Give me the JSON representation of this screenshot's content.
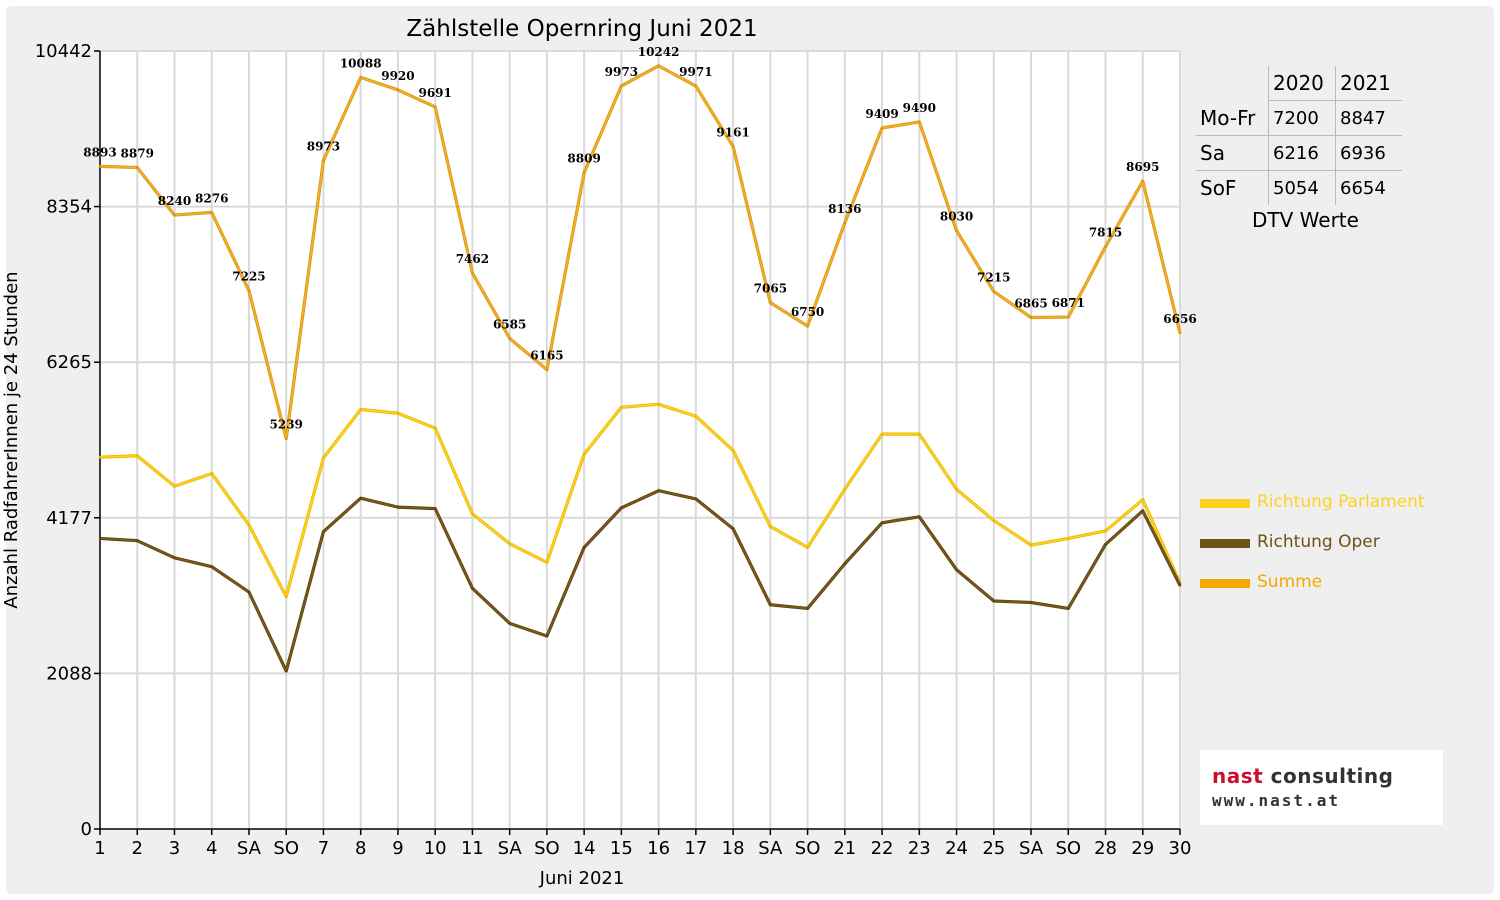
{
  "chart_data": {
    "type": "line",
    "title": "Zählstelle Opernring Juni 2021",
    "xlabel": "Juni 2021",
    "ylabel": "Anzahl RadfahrerInnen je 24 Stunden",
    "ylim": [
      0,
      10442
    ],
    "yticks": [
      "0",
      "2088",
      "4177",
      "6265",
      "8354",
      "10442"
    ],
    "grid": true,
    "legend_position": "right",
    "categories": [
      "1",
      "2",
      "3",
      "4",
      "SA",
      "SO",
      "7",
      "8",
      "9",
      "10",
      "11",
      "SA",
      "SO",
      "14",
      "15",
      "16",
      "17",
      "18",
      "SA",
      "SO",
      "21",
      "22",
      "23",
      "24",
      "25",
      "SA",
      "SO",
      "28",
      "29",
      "30"
    ],
    "category_colors": [
      "#000000",
      "#000000",
      "#e00000",
      "#000000",
      "#000000",
      "#e00000",
      "#000000",
      "#000000",
      "#000000",
      "#000000",
      "#000000",
      "#000000",
      "#e00000",
      "#000000",
      "#000000",
      "#000000",
      "#000000",
      "#000000",
      "#000000",
      "#e00000",
      "#000000",
      "#000000",
      "#000000",
      "#000000",
      "#000000",
      "#000000",
      "#e00000",
      "#000000",
      "#000000",
      "#000000"
    ],
    "series": [
      {
        "name": "Richtung Parlament",
        "color": "#ffd21f",
        "values": [
          4990,
          5010,
          4600,
          4770,
          4080,
          3120,
          4980,
          5630,
          5580,
          5380,
          4230,
          3830,
          3580,
          5030,
          5660,
          5700,
          5540,
          5080,
          4060,
          3780,
          4560,
          5300,
          5300,
          4560,
          4140,
          3810,
          3900,
          4000,
          4420,
          3300
        ]
      },
      {
        "name": "Richtung Oper",
        "color": "#7a5a1c",
        "values": [
          3900,
          3870,
          3640,
          3520,
          3180,
          2120,
          3990,
          4440,
          4320,
          4300,
          3230,
          2760,
          2590,
          3780,
          4310,
          4540,
          4430,
          4030,
          3010,
          2960,
          3560,
          4110,
          4190,
          3480,
          3060,
          3040,
          2960,
          3820,
          4270,
          3270
        ]
      },
      {
        "name": "Summe",
        "color": "#f3b21f",
        "values": [
          8893,
          8879,
          8240,
          8276,
          7225,
          5239,
          8973,
          10088,
          9920,
          9691,
          7462,
          6585,
          6165,
          8809,
          9973,
          10242,
          9971,
          9161,
          7065,
          6750,
          8136,
          9409,
          9490,
          8030,
          7215,
          6865,
          6871,
          7815,
          8695,
          6656
        ],
        "labels": [
          "8893",
          "8879",
          "8240",
          "8276",
          "7225",
          "5239",
          "8973",
          "10088",
          "9920",
          "9691",
          "7462",
          "6585",
          "6165",
          "8809",
          "9973",
          "10242",
          "9971",
          "9161",
          "7065",
          "6750",
          "8136",
          "9409",
          "9490",
          "8030",
          "7215",
          "6865",
          "6871",
          "7815",
          "8695",
          "6656"
        ]
      }
    ]
  },
  "dtv_table": {
    "caption": "DTV Werte",
    "columns": [
      "2020",
      "2021"
    ],
    "rows": [
      {
        "label": "Mo-Fr",
        "v2020": "7200",
        "v2021": "8847"
      },
      {
        "label": "Sa",
        "v2020": "6216",
        "v2021": "6936"
      },
      {
        "label": "SoF",
        "v2020": "5054",
        "v2021": "6654"
      }
    ]
  },
  "legend": [
    {
      "label": "Richtung Parlament",
      "color": "#ffd21f"
    },
    {
      "label": "Richtung Oper",
      "color": "#6e5216"
    },
    {
      "label": "Summe",
      "color": "#f2a900"
    }
  ],
  "logo": {
    "name_part1": "nast",
    "name_part2": " consulting",
    "name_part1_color": "#c8102e",
    "name_part2_color": "#333333",
    "url": "www.nast.at"
  }
}
